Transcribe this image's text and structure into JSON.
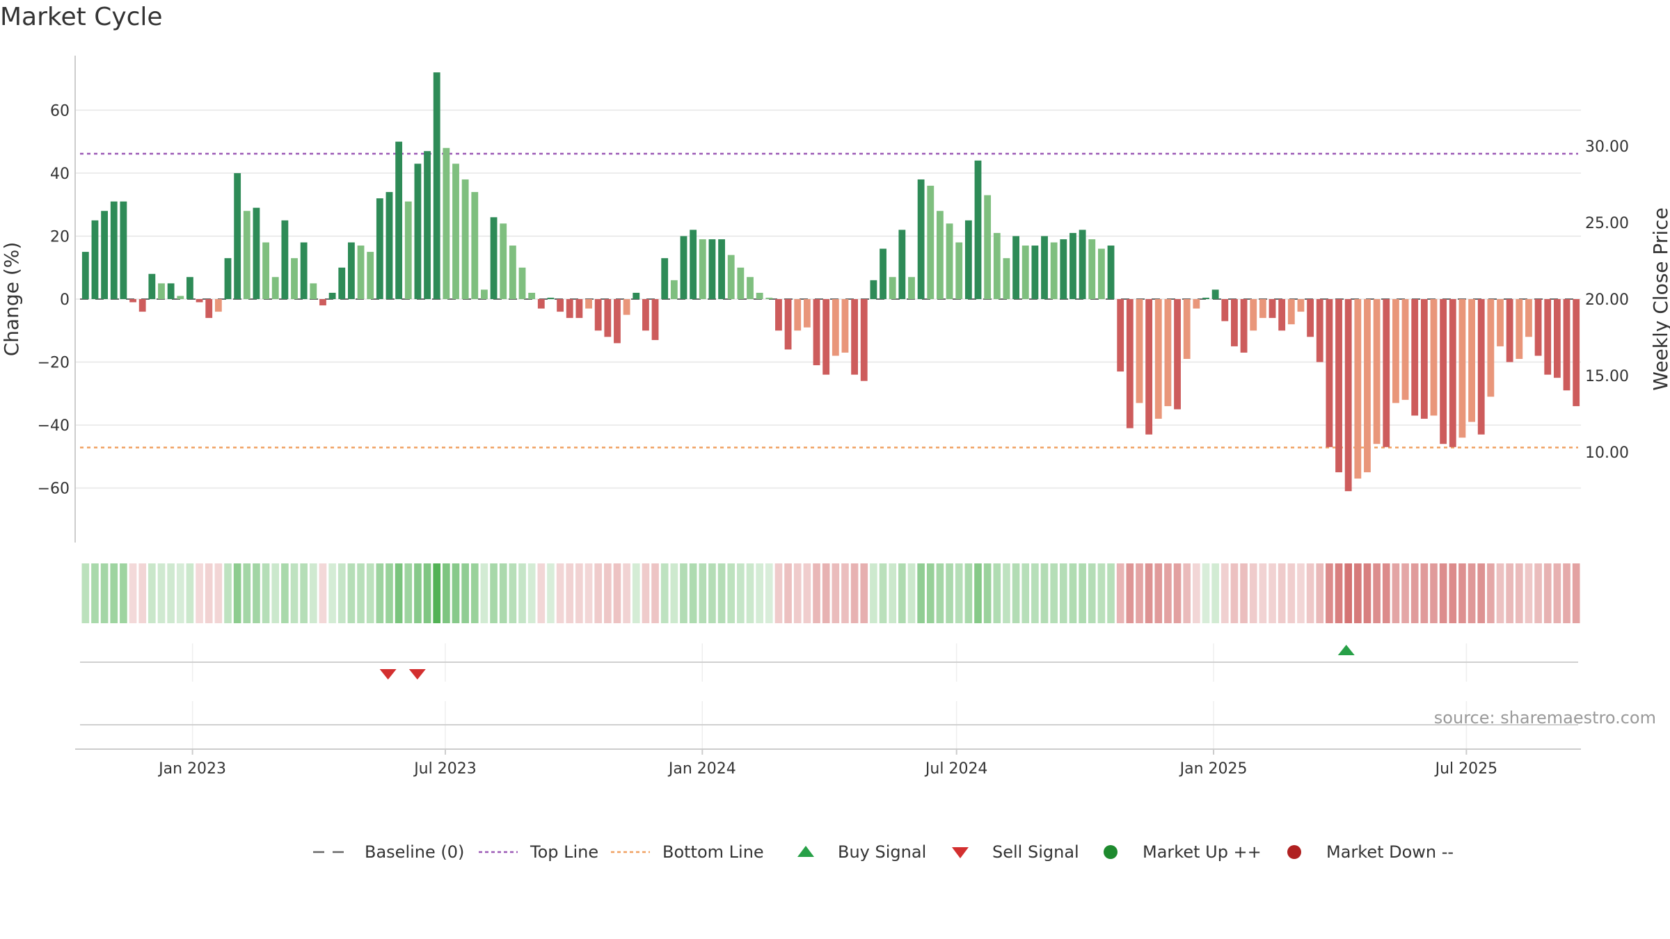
{
  "title": "Market Cycle",
  "source": "source: sharemaestro.com",
  "chart_data": {
    "type": "bar",
    "title": "Market Cycle",
    "ylabel": "Change (%)",
    "y2label": "Weekly Close Price",
    "ylim": [
      -78,
      78
    ],
    "yticks": [
      -60,
      -40,
      -20,
      0,
      20,
      40,
      60
    ],
    "ytick_labels": [
      "−60",
      "−40",
      "−20",
      "0",
      "20",
      "40",
      "60"
    ],
    "y2lim": [
      6,
      36
    ],
    "y2ticks": [
      10,
      15,
      20,
      25,
      30
    ],
    "y2tick_labels": [
      "10.00",
      "15.00",
      "20.00",
      "25.00",
      "30.00"
    ],
    "x_start": "2022-10-09",
    "x_end": "2025-09-21",
    "xticks": [
      {
        "date": "2023-01-01",
        "label": "Jan 2023"
      },
      {
        "date": "2023-07-01",
        "label": "Jul 2023"
      },
      {
        "date": "2024-01-01",
        "label": "Jan 2024"
      },
      {
        "date": "2024-07-01",
        "label": "Jul 2024"
      },
      {
        "date": "2025-01-01",
        "label": "Jan 2025"
      },
      {
        "date": "2025-07-01",
        "label": "Jul 2025"
      }
    ],
    "first_week": "2022-10-09",
    "week_interval_days": 7,
    "values": [
      15,
      25,
      28,
      31,
      31,
      -1,
      -4,
      8,
      5,
      5,
      1,
      7,
      -1,
      -6,
      -4,
      13,
      40,
      28,
      29,
      18,
      7,
      25,
      13,
      18,
      5,
      -2,
      2,
      10,
      18,
      17,
      15,
      32,
      34,
      50,
      31,
      43,
      47,
      72,
      48,
      43,
      38,
      34,
      3,
      26,
      24,
      17,
      10,
      2,
      -3,
      0,
      -4,
      -6,
      -6,
      -3,
      -10,
      -12,
      -14,
      -5,
      2,
      -10,
      -13,
      13,
      6,
      20,
      22,
      19,
      19,
      19,
      14,
      10,
      7,
      2,
      0,
      -10,
      -16,
      -10,
      -9,
      -21,
      -24,
      -18,
      -17,
      -24,
      -26,
      6,
      16,
      7,
      22,
      7,
      38,
      36,
      28,
      24,
      18,
      25,
      44,
      33,
      21,
      13,
      20,
      17,
      17,
      20,
      18,
      19,
      21,
      22,
      19,
      16,
      17,
      -23,
      -41,
      -33,
      -43,
      -38,
      -34,
      -35,
      -19,
      -3,
      0,
      3,
      -7,
      -15,
      -17,
      -10,
      -6,
      -6,
      -10,
      -8,
      -4,
      -12,
      -20,
      -47,
      -55,
      -61,
      -57,
      -55,
      -46,
      -47,
      -33,
      -32,
      -37,
      -38,
      -37,
      -46,
      -47,
      -44,
      -39,
      -43,
      -31,
      -15,
      -20,
      -19,
      -12,
      -18,
      -24,
      -25,
      -29,
      -34
    ],
    "top_line": 29.5,
    "bottom_line": 10.3,
    "baseline": 0,
    "sell_signals": [
      "2023-05-21",
      "2023-06-11"
    ],
    "buy_signals": [
      "2025-04-06"
    ],
    "legend": [
      {
        "label": "Baseline (0)",
        "symbol": "dash",
        "color": "#666666"
      },
      {
        "label": "Top Line",
        "symbol": "dotted",
        "color": "#9b59b6"
      },
      {
        "label": "Bottom Line",
        "symbol": "dotted",
        "color": "#f0a060"
      },
      {
        "label": "Buy Signal",
        "symbol": "triangle-up",
        "color": "#27a047"
      },
      {
        "label": "Sell Signal",
        "symbol": "triangle-down",
        "color": "#d32f2f"
      },
      {
        "label": "Market Up ++",
        "symbol": "circle",
        "color": "#1e8a2e"
      },
      {
        "label": "Market Down --",
        "symbol": "circle",
        "color": "#b02020"
      }
    ],
    "legend_position": "bottom",
    "grid": true,
    "colors": {
      "up_strong": "#2e8b57",
      "up_light": "#7fbf7f",
      "down_strong": "#cd5c5c",
      "down_light": "#e9967a",
      "grid": "#e6e6e6",
      "axis": "#cccccc"
    }
  }
}
